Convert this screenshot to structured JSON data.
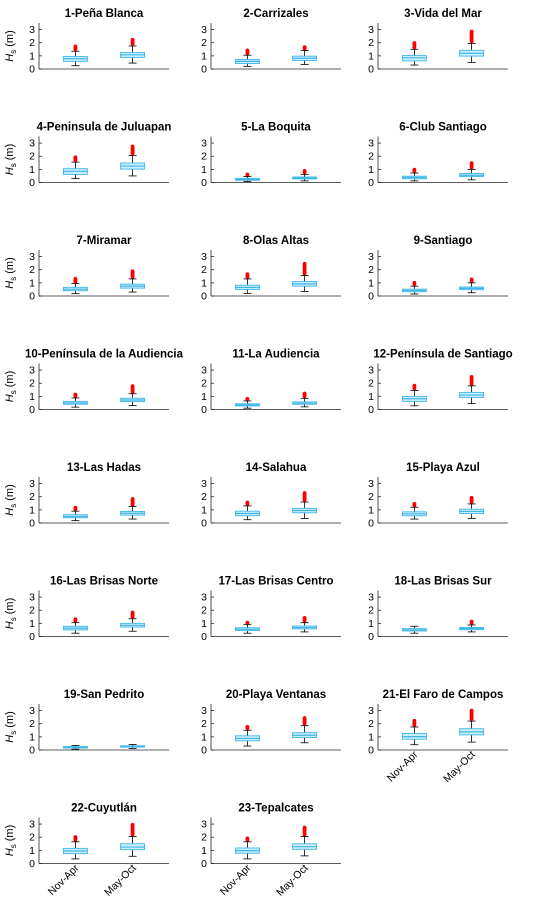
{
  "chart_data": {
    "type": "boxplot",
    "ylabel": "H_s (m)",
    "ylabel_main": "H",
    "ylabel_sub": "s",
    "ylabel_unit": "(m)",
    "categories": [
      "Nov-Apr",
      "May-Oct"
    ],
    "ylim": [
      0,
      3.5
    ],
    "yticks": [
      "0",
      "1",
      "2",
      "3"
    ],
    "box_color": "#3fb6e8",
    "box_fill": "#cdeefb",
    "whisker_color": "#000000",
    "outlier_color": "#ff0000",
    "grid": false,
    "panels": [
      {
        "title": "1-Peña Blanca",
        "boxes": [
          {
            "q1": 0.58,
            "median": 0.78,
            "q3": 0.95,
            "whisker_low": 0.25,
            "whisker_high": 1.35,
            "outlier_max": 1.75
          },
          {
            "q1": 0.88,
            "median": 1.08,
            "q3": 1.25,
            "whisker_low": 0.45,
            "whisker_high": 1.75,
            "outlier_max": 2.25
          }
        ]
      },
      {
        "title": "2-Carrizales",
        "boxes": [
          {
            "q1": 0.42,
            "median": 0.58,
            "q3": 0.72,
            "whisker_low": 0.2,
            "whisker_high": 1.05,
            "outlier_max": 1.45
          },
          {
            "q1": 0.65,
            "median": 0.82,
            "q3": 0.98,
            "whisker_low": 0.35,
            "whisker_high": 1.4,
            "outlier_max": 1.75
          }
        ]
      },
      {
        "title": "3-Vida del Mar",
        "boxes": [
          {
            "q1": 0.62,
            "median": 0.85,
            "q3": 1.02,
            "whisker_low": 0.3,
            "whisker_high": 1.5,
            "outlier_max": 2.0
          },
          {
            "q1": 0.98,
            "median": 1.2,
            "q3": 1.42,
            "whisker_low": 0.5,
            "whisker_high": 1.95,
            "outlier_max": 2.85
          }
        ]
      },
      {
        "title": "4-Peninsula de Juluapan",
        "boxes": [
          {
            "q1": 0.62,
            "median": 0.85,
            "q3": 1.05,
            "whisker_low": 0.3,
            "whisker_high": 1.55,
            "outlier_max": 2.0
          },
          {
            "q1": 1.02,
            "median": 1.25,
            "q3": 1.48,
            "whisker_low": 0.5,
            "whisker_high": 2.05,
            "outlier_max": 2.75
          }
        ]
      },
      {
        "title": "5-La Boquita",
        "boxes": [
          {
            "q1": 0.17,
            "median": 0.24,
            "q3": 0.31,
            "whisker_low": 0.08,
            "whisker_high": 0.45,
            "outlier_max": 0.62
          },
          {
            "q1": 0.27,
            "median": 0.34,
            "q3": 0.42,
            "whisker_low": 0.12,
            "whisker_high": 0.62,
            "outlier_max": 0.92
          }
        ]
      },
      {
        "title": "6-Club Santiago",
        "boxes": [
          {
            "q1": 0.28,
            "median": 0.38,
            "q3": 0.48,
            "whisker_low": 0.12,
            "whisker_high": 0.72,
            "outlier_max": 1.02
          },
          {
            "q1": 0.45,
            "median": 0.55,
            "q3": 0.68,
            "whisker_low": 0.2,
            "whisker_high": 1.0,
            "outlier_max": 1.5
          }
        ]
      },
      {
        "title": "7-Miramar",
        "boxes": [
          {
            "q1": 0.4,
            "median": 0.52,
            "q3": 0.66,
            "whisker_low": 0.18,
            "whisker_high": 0.95,
            "outlier_max": 1.32
          },
          {
            "q1": 0.6,
            "median": 0.75,
            "q3": 0.9,
            "whisker_low": 0.3,
            "whisker_high": 1.3,
            "outlier_max": 1.9
          }
        ]
      },
      {
        "title": "8-Olas Altas",
        "boxes": [
          {
            "q1": 0.5,
            "median": 0.65,
            "q3": 0.82,
            "whisker_low": 0.2,
            "whisker_high": 1.3,
            "outlier_max": 1.7
          },
          {
            "q1": 0.75,
            "median": 0.92,
            "q3": 1.1,
            "whisker_low": 0.35,
            "whisker_high": 1.55,
            "outlier_max": 2.45
          }
        ]
      },
      {
        "title": "9-Santiago",
        "boxes": [
          {
            "q1": 0.32,
            "median": 0.42,
            "q3": 0.52,
            "whisker_low": 0.15,
            "whisker_high": 0.75,
            "outlier_max": 1.02
          },
          {
            "q1": 0.48,
            "median": 0.58,
            "q3": 0.68,
            "whisker_low": 0.25,
            "whisker_high": 1.0,
            "outlier_max": 1.3
          }
        ]
      },
      {
        "title": "10-Península de la Audiencia",
        "boxes": [
          {
            "q1": 0.4,
            "median": 0.5,
            "q3": 0.62,
            "whisker_low": 0.18,
            "whisker_high": 0.88,
            "outlier_max": 1.22
          },
          {
            "q1": 0.6,
            "median": 0.72,
            "q3": 0.86,
            "whisker_low": 0.3,
            "whisker_high": 1.2,
            "outlier_max": 1.8
          }
        ]
      },
      {
        "title": "11-La Audiencia",
        "boxes": [
          {
            "q1": 0.27,
            "median": 0.35,
            "q3": 0.44,
            "whisker_low": 0.1,
            "whisker_high": 0.65,
            "outlier_max": 0.85
          },
          {
            "q1": 0.4,
            "median": 0.48,
            "q3": 0.58,
            "whisker_low": 0.2,
            "whisker_high": 0.85,
            "outlier_max": 1.22
          }
        ]
      },
      {
        "title": "12-Península de Santiago",
        "boxes": [
          {
            "q1": 0.62,
            "median": 0.82,
            "q3": 1.0,
            "whisker_low": 0.28,
            "whisker_high": 1.45,
            "outlier_max": 1.85
          },
          {
            "q1": 0.92,
            "median": 1.1,
            "q3": 1.3,
            "whisker_low": 0.45,
            "whisker_high": 1.8,
            "outlier_max": 2.5
          }
        ]
      },
      {
        "title": "13-Las Hadas",
        "boxes": [
          {
            "q1": 0.4,
            "median": 0.5,
            "q3": 0.63,
            "whisker_low": 0.18,
            "whisker_high": 0.9,
            "outlier_max": 1.22
          },
          {
            "q1": 0.6,
            "median": 0.74,
            "q3": 0.88,
            "whisker_low": 0.3,
            "whisker_high": 1.25,
            "outlier_max": 1.9
          }
        ]
      },
      {
        "title": "14-Salahua",
        "boxes": [
          {
            "q1": 0.55,
            "median": 0.72,
            "q3": 0.9,
            "whisker_low": 0.25,
            "whisker_high": 1.3,
            "outlier_max": 1.62
          },
          {
            "q1": 0.78,
            "median": 0.95,
            "q3": 1.12,
            "whisker_low": 0.35,
            "whisker_high": 1.6,
            "outlier_max": 2.3
          }
        ]
      },
      {
        "title": "15-Playa Azul",
        "boxes": [
          {
            "q1": 0.55,
            "median": 0.7,
            "q3": 0.85,
            "whisker_low": 0.3,
            "whisker_high": 1.2,
            "outlier_max": 1.5
          },
          {
            "q1": 0.72,
            "median": 0.88,
            "q3": 1.05,
            "whisker_low": 0.35,
            "whisker_high": 1.45,
            "outlier_max": 2.0
          }
        ]
      },
      {
        "title": "16-Las Brisas Norte",
        "boxes": [
          {
            "q1": 0.5,
            "median": 0.64,
            "q3": 0.78,
            "whisker_low": 0.25,
            "whisker_high": 1.05,
            "outlier_max": 1.4
          },
          {
            "q1": 0.72,
            "median": 0.85,
            "q3": 1.0,
            "whisker_low": 0.4,
            "whisker_high": 1.35,
            "outlier_max": 1.9
          }
        ]
      },
      {
        "title": "17-Las Brisas Centro",
        "boxes": [
          {
            "q1": 0.45,
            "median": 0.55,
            "q3": 0.67,
            "whisker_low": 0.25,
            "whisker_high": 0.9,
            "outlier_max": 1.15
          },
          {
            "q1": 0.58,
            "median": 0.68,
            "q3": 0.8,
            "whisker_low": 0.35,
            "whisker_high": 1.05,
            "outlier_max": 1.45
          }
        ]
      },
      {
        "title": "18-Las Brisas Sur",
        "boxes": [
          {
            "q1": 0.42,
            "median": 0.5,
            "q3": 0.6,
            "whisker_low": 0.25,
            "whisker_high": 0.78,
            "outlier_max": 0.92
          },
          {
            "q1": 0.52,
            "median": 0.6,
            "q3": 0.68,
            "whisker_low": 0.35,
            "whisker_high": 0.88,
            "outlier_max": 1.15
          }
        ]
      },
      {
        "title": "19-San Pedrito",
        "boxes": [
          {
            "q1": 0.15,
            "median": 0.2,
            "q3": 0.26,
            "whisker_low": 0.06,
            "whisker_high": 0.35,
            "outlier_max": 0.42
          },
          {
            "q1": 0.22,
            "median": 0.27,
            "q3": 0.32,
            "whisker_low": 0.12,
            "whisker_high": 0.42,
            "outlier_max": 0.55
          }
        ]
      },
      {
        "title": "20-Playa Ventanas",
        "boxes": [
          {
            "q1": 0.7,
            "median": 0.88,
            "q3": 1.08,
            "whisker_low": 0.3,
            "whisker_high": 1.5,
            "outlier_max": 1.82
          },
          {
            "q1": 0.95,
            "median": 1.12,
            "q3": 1.32,
            "whisker_low": 0.55,
            "whisker_high": 1.85,
            "outlier_max": 2.45
          }
        ]
      },
      {
        "title": "21-El Faro de Campos",
        "boxes": [
          {
            "q1": 0.82,
            "median": 1.02,
            "q3": 1.25,
            "whisker_low": 0.4,
            "whisker_high": 1.75,
            "outlier_max": 2.25
          },
          {
            "q1": 1.15,
            "median": 1.38,
            "q3": 1.62,
            "whisker_low": 0.6,
            "whisker_high": 2.2,
            "outlier_max": 3.0
          }
        ]
      },
      {
        "title": "22-Cuyutlán",
        "boxes": [
          {
            "q1": 0.75,
            "median": 0.95,
            "q3": 1.15,
            "whisker_low": 0.35,
            "whisker_high": 1.65,
            "outlier_max": 2.1
          },
          {
            "q1": 1.05,
            "median": 1.25,
            "q3": 1.5,
            "whisker_low": 0.55,
            "whisker_high": 2.05,
            "outlier_max": 3.0
          }
        ]
      },
      {
        "title": "23-Tepalcates",
        "boxes": [
          {
            "q1": 0.78,
            "median": 0.98,
            "q3": 1.18,
            "whisker_low": 0.35,
            "whisker_high": 1.65,
            "outlier_max": 2.0
          },
          {
            "q1": 1.08,
            "median": 1.28,
            "q3": 1.5,
            "whisker_low": 0.58,
            "whisker_high": 2.05,
            "outlier_max": 2.75
          }
        ]
      }
    ]
  }
}
